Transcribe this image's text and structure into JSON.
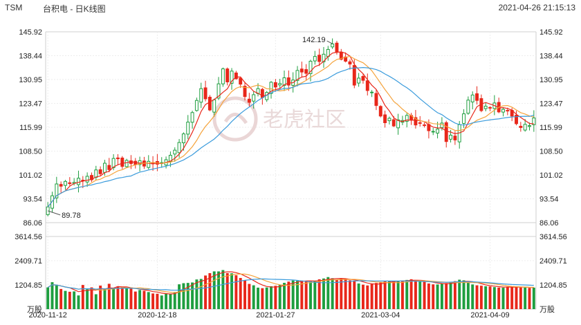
{
  "header": {
    "ticker": "TSM",
    "title": "台积电 - 日K线图",
    "timestamp": "2021-04-26 21:15:13"
  },
  "watermark": {
    "text": "老虎社区"
  },
  "colors": {
    "up": "#1e9e3f",
    "down": "#e8271a",
    "ma_short": "#e8271a",
    "ma_mid": "#f5a33b",
    "ma_long": "#3a9bdc"
  },
  "chart_data": {
    "type": "candlestick",
    "price_axis": {
      "ticks": [
        "145.92",
        "138.44",
        "130.95",
        "123.47",
        "115.99",
        "108.50",
        "101.02",
        "93.54",
        "86.06"
      ],
      "ylim": [
        86.06,
        145.92
      ]
    },
    "volume_axis": {
      "ticks": [
        "3614.56",
        "2409.71",
        "1204.85",
        "万股"
      ],
      "ylim": [
        0,
        3614.56
      ],
      "unit": "万股"
    },
    "date_labels": [
      {
        "label": "2020-11-12",
        "index": 0
      },
      {
        "label": "2020-12-18",
        "index": 25
      },
      {
        "label": "2021-01-27",
        "index": 52
      },
      {
        "label": "2021-03-04",
        "index": 76
      },
      {
        "label": "2021-04-09",
        "index": 101
      }
    ],
    "annotations": [
      {
        "label": "142.19",
        "index": 65,
        "value": 142.19
      },
      {
        "label": "89.78",
        "index": 0,
        "value": 89.78
      }
    ],
    "closes": [
      91.0,
      94.5,
      98.2,
      97.5,
      99.0,
      98.3,
      98.7,
      100.0,
      99.3,
      100.6,
      99.5,
      102.6,
      101.4,
      104.7,
      102.7,
      106.2,
      106.1,
      103.7,
      105.6,
      104.6,
      104.3,
      105.5,
      103.8,
      105.3,
      104.5,
      104.4,
      104.9,
      105.8,
      107.2,
      108.8,
      111.2,
      113.9,
      117.6,
      120.6,
      124.4,
      128.1,
      124.9,
      121.4,
      124.6,
      129.6,
      134.3,
      130.2,
      133.6,
      131.2,
      129.5,
      125.6,
      123.8,
      126.2,
      128.1,
      125.3,
      126.9,
      130.1,
      128.6,
      129.7,
      131.5,
      129.2,
      130.8,
      133.8,
      133.3,
      132.9,
      136.7,
      138.2,
      136.6,
      138.9,
      140.4,
      142.1,
      139.5,
      137.3,
      136.7,
      135.8,
      129.2,
      131.4,
      130.7,
      127.5,
      127.0,
      122.8,
      119.5,
      117.4,
      118.8,
      116.4,
      118.3,
      118.1,
      119.7,
      118.4,
      116.7,
      117.4,
      116.5,
      114.9,
      114.7,
      115.4,
      117.3,
      111.5,
      113.5,
      112.0,
      116.8,
      120.2,
      124.5,
      126.1,
      124.4,
      121.2,
      122.6,
      122.1,
      123.6,
      120.8,
      121.6,
      121.2,
      119.5,
      117.1,
      115.9,
      116.9,
      116.5,
      118.9
    ],
    "volumes": [
      1080,
      1340,
      1180,
      1003,
      907,
      863,
      880,
      680,
      1201,
      990,
      1081,
      740,
      1170,
      1010,
      1260,
      1044,
      1130,
      1088,
      1023,
      1042,
      874,
      950,
      909,
      848,
      779,
      765,
      678,
      789,
      757,
      850,
      1234,
      1290,
      1304,
      1325,
      1475,
      1501,
      1672,
      1790,
      1878,
      1876,
      1943,
      1793,
      1782,
      1685,
      1550,
      1438,
      1255,
      1184,
      1068,
      1042,
      1077,
      1138,
      1160,
      1200,
      1307,
      1368,
      1422,
      1406,
      1418,
      1407,
      1380,
      1400,
      1483,
      1524,
      1593,
      1537,
      1456,
      1528,
      1467,
      1434,
      1386,
      1275,
      1217,
      1176,
      1245,
      1301,
      1343,
      1408,
      1381,
      1407,
      1402,
      1420,
      1451,
      1486,
      1429,
      1379,
      1367,
      1274,
      1232,
      1226,
      1268,
      1296,
      1341,
      1390,
      1463,
      1433,
      1309,
      1228,
      1184,
      1165,
      1136,
      1126,
      1095,
      1072,
      1064,
      1118,
      1116,
      1089,
      1079,
      1073,
      1052,
      1069
    ]
  }
}
